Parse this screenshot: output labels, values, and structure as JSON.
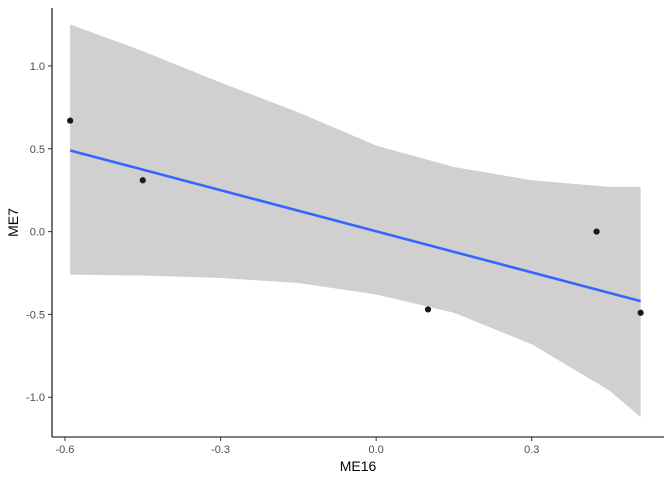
{
  "chart_data": {
    "type": "scatter",
    "xlabel": "ME16",
    "ylabel": "ME7",
    "xlim": [
      -0.625,
      0.555
    ],
    "ylim": [
      -1.24,
      1.35
    ],
    "x_ticks": [
      -0.6,
      -0.3,
      0.0,
      0.3
    ],
    "x_tick_labels": [
      "-0.6",
      "-0.3",
      "0.0",
      "0.3"
    ],
    "y_ticks": [
      -1.0,
      -0.5,
      0.0,
      0.5,
      1.0
    ],
    "y_tick_labels": [
      "-1.0",
      "-0.5",
      "0.0",
      "0.5",
      "1.0"
    ],
    "grid": false,
    "legend": "none",
    "points": [
      {
        "x": -0.59,
        "y": 0.67
      },
      {
        "x": -0.45,
        "y": 0.31
      },
      {
        "x": 0.1,
        "y": -0.47
      },
      {
        "x": 0.425,
        "y": 0.0
      },
      {
        "x": 0.51,
        "y": -0.49
      }
    ],
    "fit_line": {
      "method": "linear",
      "x": [
        -0.59,
        0.51
      ],
      "y": [
        0.49,
        -0.42
      ]
    },
    "confidence_band": {
      "x": [
        -0.59,
        -0.45,
        -0.3,
        -0.15,
        0.0,
        0.15,
        0.3,
        0.45,
        0.51
      ],
      "lower": [
        -0.26,
        -0.265,
        -0.28,
        -0.31,
        -0.38,
        -0.49,
        -0.68,
        -0.96,
        -1.12
      ],
      "upper": [
        1.25,
        1.09,
        0.9,
        0.72,
        0.52,
        0.39,
        0.31,
        0.27,
        0.27
      ]
    },
    "colors": {
      "points": "#1a1a1a",
      "line": "#3366ff",
      "band": "#d0d0d0",
      "axis": "#000000",
      "tick_text": "#4d4d4d"
    }
  }
}
